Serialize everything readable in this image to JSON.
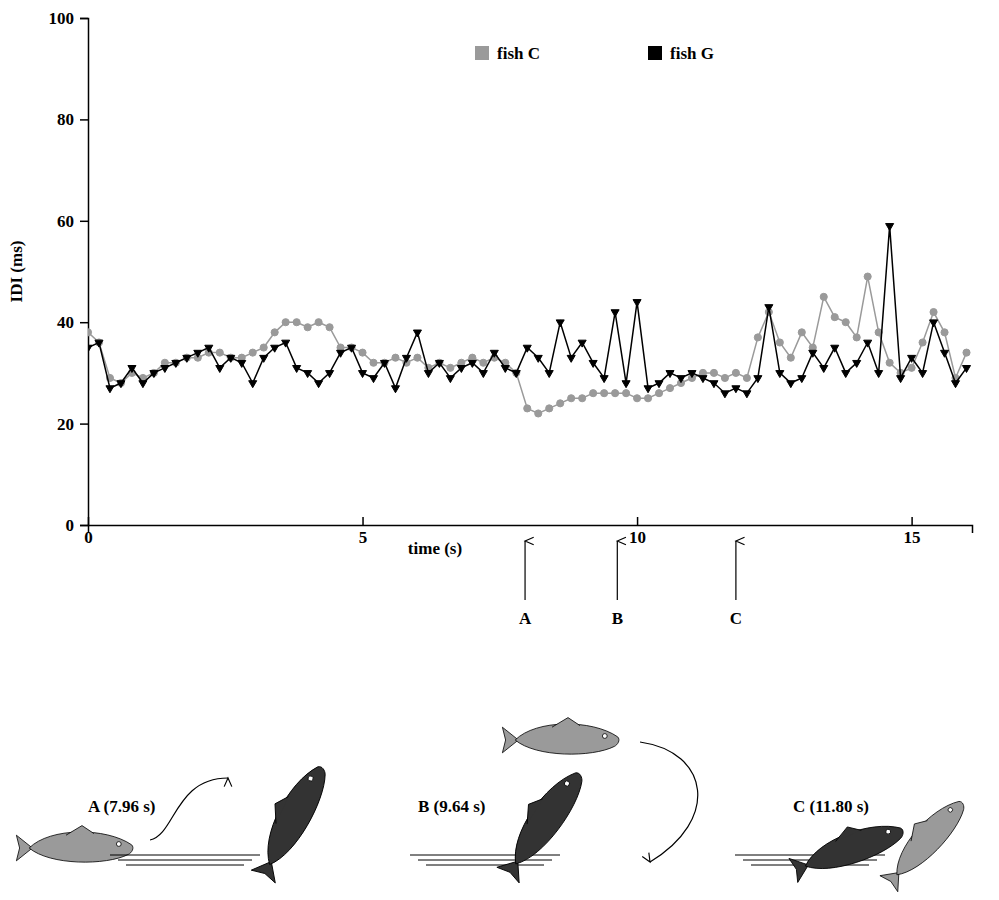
{
  "chart_data": {
    "type": "line",
    "x_label": "time (s)",
    "y_label": "IDI (ms)",
    "xlim": [
      0,
      16.1
    ],
    "xticks": [
      0,
      5,
      10,
      15
    ],
    "ylim": [
      0,
      100
    ],
    "yticks": [
      0,
      20,
      40,
      60,
      80,
      100
    ],
    "legend": "top-right",
    "x": [
      0,
      0.2,
      0.4,
      0.6,
      0.8,
      1,
      1.2,
      1.4,
      1.6,
      1.8,
      2,
      2.2,
      2.4,
      2.6,
      2.8,
      3,
      3.2,
      3.4,
      3.6,
      3.8,
      4,
      4.2,
      4.4,
      4.6,
      4.8,
      5,
      5.2,
      5.4,
      5.6,
      5.8,
      6,
      6.2,
      6.4,
      6.6,
      6.8,
      7,
      7.2,
      7.4,
      7.6,
      7.8,
      8,
      8.2,
      8.4,
      8.6,
      8.8,
      9,
      9.2,
      9.4,
      9.6,
      9.8,
      10,
      10.2,
      10.4,
      10.6,
      10.8,
      11,
      11.2,
      11.4,
      11.6,
      11.8,
      12,
      12.2,
      12.4,
      12.6,
      12.8,
      13,
      13.2,
      13.4,
      13.6,
      13.8,
      14,
      14.2,
      14.4,
      14.6,
      14.8,
      15,
      15.2,
      15.4,
      15.6,
      15.8,
      16
    ],
    "series": [
      {
        "name": "fish C",
        "color": "#9a9a9a",
        "marker": "circle",
        "values": [
          38,
          36,
          29,
          28,
          30,
          29,
          30,
          32,
          32,
          33,
          33,
          34,
          34,
          33,
          33,
          34,
          35,
          38,
          40,
          40,
          39,
          40,
          39,
          35,
          35,
          34,
          32,
          32,
          33,
          32,
          33,
          31,
          32,
          31,
          32,
          33,
          32,
          33,
          32,
          30,
          23,
          22,
          23,
          24,
          25,
          25,
          26,
          26,
          26,
          26,
          25,
          25,
          26,
          27,
          28,
          29,
          30,
          30,
          29,
          30,
          29,
          37,
          42,
          36,
          33,
          38,
          35,
          45,
          41,
          40,
          37,
          49,
          38,
          32,
          30,
          31,
          36,
          42,
          38,
          29,
          34
        ]
      },
      {
        "name": "fish G",
        "color": "#000000",
        "marker": "triangle-down",
        "values": [
          35,
          36,
          27,
          28,
          31,
          28,
          30,
          31,
          32,
          33,
          34,
          35,
          31,
          33,
          32,
          28,
          33,
          35,
          36,
          31,
          30,
          28,
          30,
          34,
          35,
          30,
          29,
          32,
          27,
          33,
          38,
          30,
          32,
          29,
          31,
          32,
          30,
          34,
          31,
          30,
          35,
          33,
          30,
          40,
          33,
          36,
          32,
          29,
          42,
          28,
          44,
          27,
          28,
          30,
          29,
          30,
          29,
          28,
          26,
          27,
          26,
          29,
          43,
          30,
          28,
          29,
          34,
          31,
          35,
          30,
          32,
          36,
          30,
          59,
          29,
          33,
          30,
          40,
          34,
          28,
          31
        ]
      }
    ],
    "annotations": [
      {
        "label": "A",
        "x": 7.96,
        "caption": "A (7.96 s)"
      },
      {
        "label": "B",
        "x": 9.64,
        "caption": "B (9.64 s)"
      },
      {
        "label": "C",
        "x": 11.8,
        "caption": "C (11.80 s)"
      }
    ]
  }
}
